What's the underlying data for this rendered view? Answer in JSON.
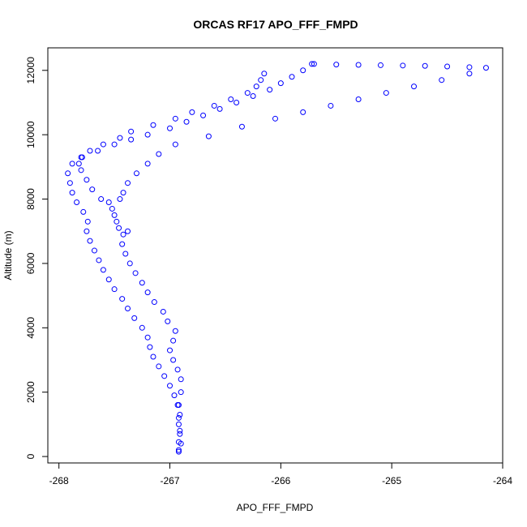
{
  "chart_data": {
    "type": "scatter",
    "title": "ORCAS RF17 APO_FFF_FMPD",
    "xlabel": "APO_FFF_FMPD",
    "ylabel": "Altitude (m)",
    "xlim": [
      -268.1,
      -264.0
    ],
    "ylim": [
      -200,
      12700
    ],
    "x_ticks": [
      -268,
      -267,
      -266,
      -265,
      -264
    ],
    "y_ticks": [
      0,
      2000,
      4000,
      6000,
      8000,
      10000,
      12000
    ],
    "marker": "open-circle",
    "point_color": "#0000ff",
    "grid": false,
    "series": [
      {
        "points": [
          [
            -266.92,
            200
          ],
          [
            -266.92,
            450
          ],
          [
            -266.91,
            700
          ],
          [
            -266.92,
            1000
          ],
          [
            -266.91,
            1300
          ],
          [
            -266.92,
            1600
          ],
          [
            -266.9,
            2000
          ],
          [
            -266.9,
            2400
          ],
          [
            -266.93,
            2700
          ],
          [
            -266.97,
            3000
          ],
          [
            -267.0,
            3300
          ],
          [
            -266.97,
            3600
          ],
          [
            -266.95,
            3900
          ],
          [
            -267.02,
            4200
          ],
          [
            -267.06,
            4500
          ],
          [
            -267.14,
            4800
          ],
          [
            -267.2,
            5100
          ],
          [
            -267.25,
            5400
          ],
          [
            -267.31,
            5700
          ],
          [
            -267.36,
            6000
          ],
          [
            -267.4,
            6300
          ],
          [
            -267.43,
            6600
          ],
          [
            -267.42,
            6900
          ],
          [
            -267.38,
            7000
          ],
          [
            -267.46,
            7100
          ],
          [
            -267.48,
            7300
          ],
          [
            -267.5,
            7500
          ],
          [
            -267.52,
            7700
          ],
          [
            -267.55,
            7900
          ],
          [
            -267.62,
            8000
          ],
          [
            -267.7,
            8300
          ],
          [
            -267.75,
            8600
          ],
          [
            -267.8,
            8900
          ],
          [
            -267.82,
            9100
          ],
          [
            -267.79,
            9300
          ],
          [
            -267.72,
            9500
          ],
          [
            -267.6,
            9700
          ],
          [
            -267.45,
            9900
          ],
          [
            -267.35,
            10100
          ],
          [
            -267.15,
            10300
          ],
          [
            -266.95,
            10500
          ],
          [
            -266.8,
            10700
          ],
          [
            -266.6,
            10900
          ],
          [
            -266.45,
            11100
          ],
          [
            -266.3,
            11300
          ],
          [
            -266.22,
            11500
          ],
          [
            -266.18,
            11700
          ],
          [
            -266.15,
            11900
          ]
        ]
      },
      {
        "points": [
          [
            -266.92,
            150
          ],
          [
            -266.9,
            400
          ],
          [
            -266.91,
            800
          ],
          [
            -266.92,
            1200
          ],
          [
            -266.93,
            1600
          ],
          [
            -266.96,
            1900
          ],
          [
            -267.0,
            2200
          ],
          [
            -267.05,
            2500
          ],
          [
            -267.1,
            2800
          ],
          [
            -267.15,
            3100
          ],
          [
            -267.18,
            3400
          ],
          [
            -267.2,
            3700
          ],
          [
            -267.25,
            4000
          ],
          [
            -267.32,
            4300
          ],
          [
            -267.38,
            4600
          ],
          [
            -267.43,
            4900
          ],
          [
            -267.5,
            5200
          ],
          [
            -267.55,
            5500
          ],
          [
            -267.6,
            5800
          ],
          [
            -267.64,
            6100
          ],
          [
            -267.68,
            6400
          ],
          [
            -267.72,
            6700
          ],
          [
            -267.75,
            7000
          ],
          [
            -267.74,
            7300
          ],
          [
            -267.78,
            7600
          ],
          [
            -267.84,
            7900
          ],
          [
            -267.88,
            8200
          ],
          [
            -267.9,
            8500
          ],
          [
            -267.92,
            8800
          ],
          [
            -267.88,
            9100
          ],
          [
            -267.8,
            9300
          ],
          [
            -267.65,
            9500
          ],
          [
            -267.5,
            9700
          ],
          [
            -267.35,
            9850
          ],
          [
            -267.2,
            10000
          ],
          [
            -267.0,
            10200
          ],
          [
            -266.85,
            10400
          ],
          [
            -266.7,
            10600
          ],
          [
            -266.55,
            10800
          ],
          [
            -266.4,
            11000
          ],
          [
            -266.25,
            11200
          ],
          [
            -266.1,
            11400
          ],
          [
            -266.0,
            11600
          ],
          [
            -265.9,
            11800
          ],
          [
            -265.8,
            12000
          ],
          [
            -265.72,
            12200
          ]
        ]
      },
      {
        "points": [
          [
            -265.7,
            12200
          ],
          [
            -265.5,
            12180
          ],
          [
            -265.3,
            12170
          ],
          [
            -265.1,
            12160
          ],
          [
            -264.9,
            12150
          ],
          [
            -264.7,
            12140
          ],
          [
            -264.5,
            12120
          ],
          [
            -264.3,
            12100
          ],
          [
            -264.15,
            12080
          ],
          [
            -264.3,
            11900
          ],
          [
            -264.55,
            11700
          ],
          [
            -264.8,
            11500
          ],
          [
            -265.05,
            11300
          ],
          [
            -265.3,
            11100
          ],
          [
            -265.55,
            10900
          ],
          [
            -265.8,
            10700
          ],
          [
            -266.05,
            10500
          ],
          [
            -266.35,
            10250
          ],
          [
            -266.65,
            9950
          ],
          [
            -266.95,
            9700
          ],
          [
            -267.1,
            9400
          ],
          [
            -267.2,
            9100
          ],
          [
            -267.3,
            8800
          ],
          [
            -267.38,
            8500
          ],
          [
            -267.42,
            8200
          ],
          [
            -267.45,
            8000
          ]
        ]
      }
    ]
  }
}
